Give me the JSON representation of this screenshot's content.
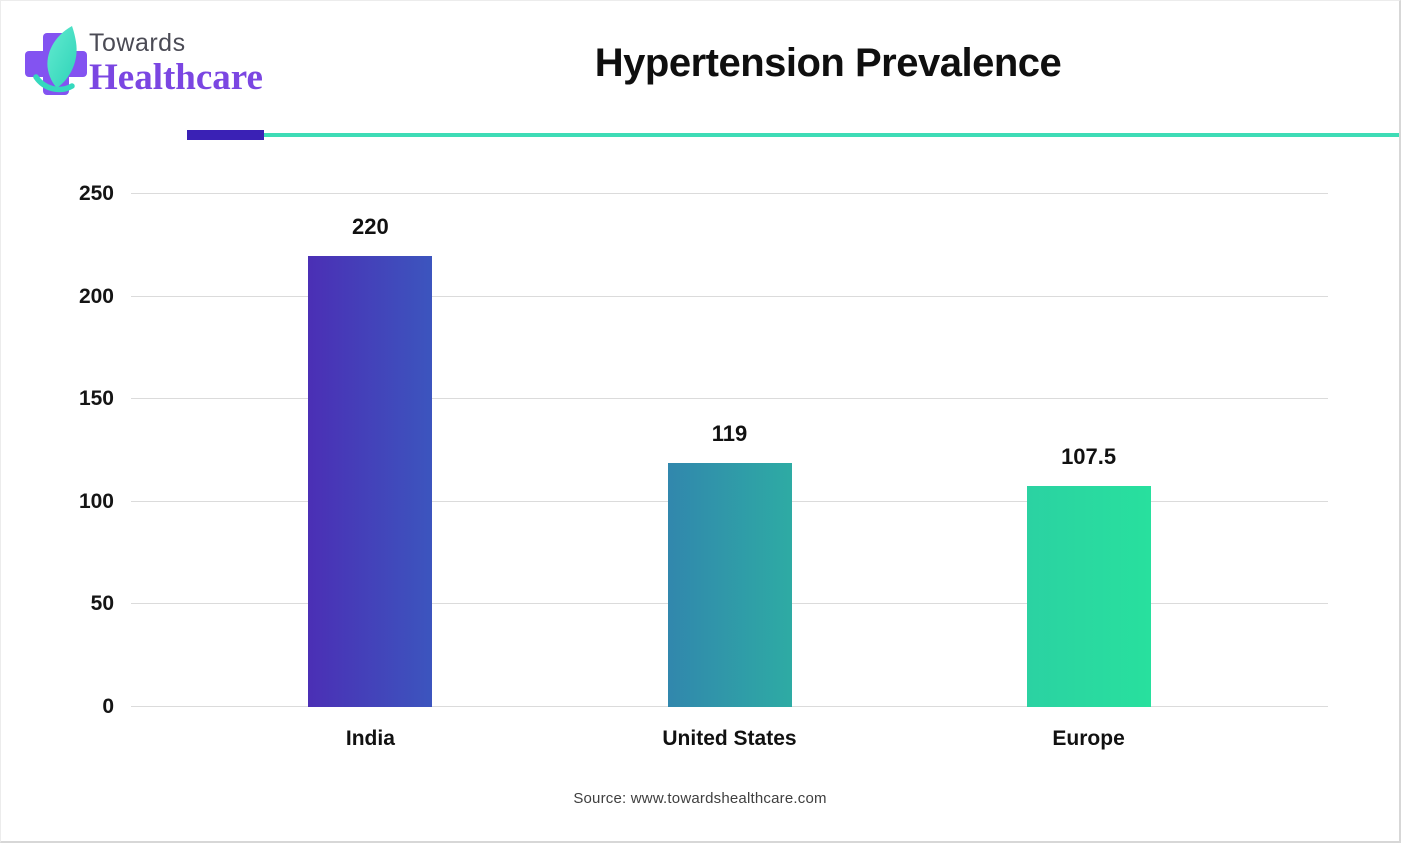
{
  "header": {
    "logo": {
      "word_top": "Towards",
      "word_bottom": "Healthcare"
    },
    "title": "Hypertension Prevalence"
  },
  "colors": {
    "cross_purple": "#8353F1",
    "leaf_mint_light": "#63EBD0",
    "leaf_mint_dark": "#2ED3B8",
    "towards_gray": "#4B4B55",
    "healthcare_purple": "#7B46E2",
    "title_black": "#0f0f0f",
    "divider_purple": "#3A21B5",
    "divider_teal": "#3EDCB6",
    "source_gray": "#3f3f3f"
  },
  "chart_data": {
    "type": "bar",
    "title": "Hypertension Prevalence",
    "categories": [
      "India",
      "United States",
      "Europe"
    ],
    "values": [
      220,
      119,
      107.5
    ],
    "value_labels": [
      "220",
      "119",
      "107.5"
    ],
    "xlabel": "",
    "ylabel": "",
    "ylim": [
      0,
      250
    ],
    "yticks": [
      0,
      50,
      100,
      150,
      200,
      250
    ],
    "grid": true,
    "legend": false,
    "bar_gradients": [
      {
        "from": "#4B2FB5",
        "to": "#3C55BE"
      },
      {
        "from": "#3187AD",
        "to": "#2EABA4"
      },
      {
        "from": "#2BD2A2",
        "to": "#28E09E"
      }
    ]
  },
  "footer": {
    "source": "Source: www.towardshealthcare.com"
  }
}
